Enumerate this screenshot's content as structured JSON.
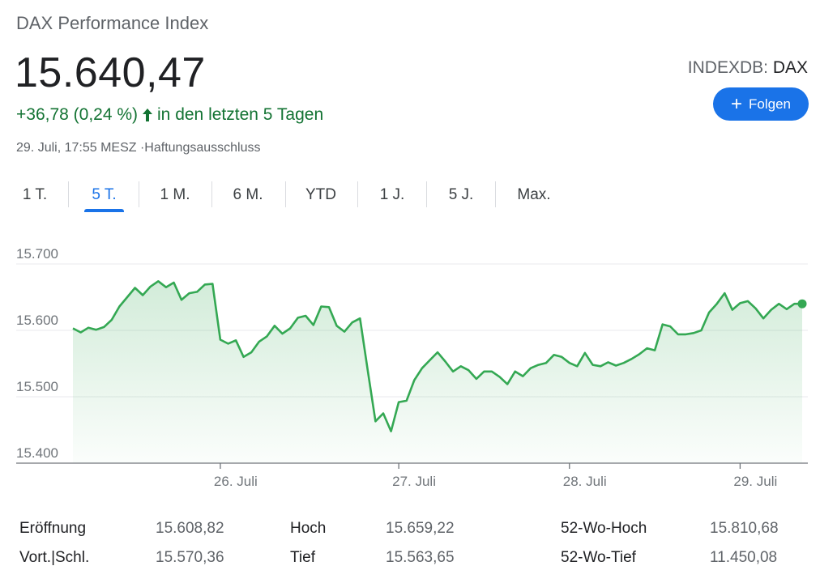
{
  "header": {
    "title": "DAX Performance Index",
    "price": "15.640,47",
    "change": "+36,78 (0,24 %)",
    "change_period": "in den letzten 5 Tagen",
    "timestamp": "29. Juli, 17:55 MESZ",
    "disclaimer": "Haftungsausschluss",
    "exchange": "INDEXDB: ",
    "symbol": "DAX",
    "follow_label": "Folgen",
    "accent_color": "#1a73e8",
    "positive_color": "#137333",
    "line_color": "#34a853"
  },
  "tabs": [
    {
      "label": "1 T."
    },
    {
      "label": "5 T.",
      "active": true
    },
    {
      "label": "1 M."
    },
    {
      "label": "6 M."
    },
    {
      "label": "YTD"
    },
    {
      "label": "1 J."
    },
    {
      "label": "5 J."
    },
    {
      "label": "Max."
    }
  ],
  "chart_data": {
    "type": "area",
    "ylim": [
      15400,
      15700
    ],
    "yticks": [
      15700,
      15600,
      15500,
      15400
    ],
    "ytick_labels": [
      "15.700",
      "15.600",
      "15.500",
      "15.400"
    ],
    "xtick_labels": [
      "26. Juli",
      "27. Juli",
      "28. Juli",
      "29. Juli"
    ],
    "grid": true,
    "series": [
      {
        "values": [
          15603,
          15597,
          15604,
          15601,
          15605,
          15616,
          15636,
          15650,
          15664,
          15653,
          15666,
          15674,
          15665,
          15672,
          15646,
          15656,
          15658,
          15669,
          15670,
          15586,
          15580,
          15585,
          15560,
          15567,
          15583,
          15591,
          15607,
          15595,
          15603,
          15619,
          15622,
          15608,
          15636,
          15635,
          15607,
          15598,
          15612,
          15618,
          15540,
          15463,
          15475,
          15448,
          15492,
          15494,
          15525,
          15543,
          15555,
          15567,
          15553,
          15538,
          15546,
          15540,
          15527,
          15538,
          15538,
          15530,
          15519,
          15538,
          15531,
          15543,
          15548,
          15551,
          15563,
          15560,
          15551,
          15546,
          15566,
          15548,
          15546,
          15552,
          15547,
          15551,
          15557,
          15564,
          15573,
          15570,
          15609,
          15606,
          15594,
          15594,
          15596,
          15600,
          15627,
          15640,
          15656,
          15631,
          15641,
          15644,
          15633,
          15618,
          15631,
          15640,
          15632,
          15640,
          15640
        ],
        "x_ticks_index": [
          19,
          42,
          64,
          86
        ]
      }
    ]
  },
  "stats": [
    {
      "label": "Eröffnung",
      "value": "15.608,82"
    },
    {
      "label": "Vort.|Schl.",
      "value": "15.570,36"
    },
    {
      "label": "Hoch",
      "value": "15.659,22"
    },
    {
      "label": "Tief",
      "value": "15.563,65"
    },
    {
      "label": "52-Wo-Hoch",
      "value": "15.810,68"
    },
    {
      "label": "52-Wo-Tief",
      "value": "11.450,08"
    }
  ]
}
